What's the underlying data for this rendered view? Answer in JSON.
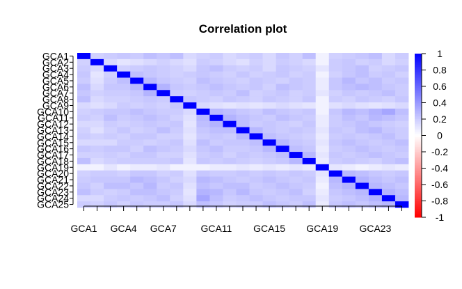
{
  "chart_data": {
    "type": "heatmap",
    "title": "Correlation plot",
    "xlabel": "",
    "ylabel": "",
    "variables": [
      "GCA1",
      "GCA2",
      "GCA3",
      "GCA4",
      "GCA5",
      "GCA6",
      "GCA7",
      "GCA8",
      "GCA9",
      "GCA10",
      "GCA11",
      "GCA12",
      "GCA13",
      "GCA14",
      "GCA15",
      "GCA16",
      "GCA17",
      "GCA18",
      "GCA19",
      "GCA20",
      "GCA21",
      "GCA22",
      "GCA23",
      "GCA24",
      "GCA25"
    ],
    "x_tick_labels": [
      "GCA1",
      "GCA4",
      "GCA7",
      "GCA11",
      "GCA15",
      "GCA19",
      "GCA23"
    ],
    "y_tick_labels": [
      "GCA1",
      "GCA2",
      "GCA3",
      "GCA4",
      "GCA5",
      "GCA6",
      "GCA7",
      "GCA8",
      "GCA9",
      "GCA10",
      "GCA11",
      "GCA12",
      "GCA13",
      "GCA14",
      "GCA15",
      "GCA16",
      "GCA17",
      "GCA18",
      "GCA19",
      "GCA20",
      "GCA21",
      "GCA22",
      "GCA23",
      "GCA24",
      "GCA25"
    ],
    "color_scale": {
      "low": "#ff0000",
      "mid": "#ffffff",
      "high": "#0000ff",
      "range": [
        -1,
        1
      ]
    },
    "legend_ticks": [
      "1",
      "0.8",
      "0.6",
      "0.4",
      "0.2",
      "0",
      "-0.2",
      "-0.4",
      "-0.6",
      "-0.8",
      "-1"
    ],
    "legend_position": "right",
    "grid": false,
    "matrix": [
      [
        1.0,
        0.18,
        0.2,
        0.22,
        0.2,
        0.25,
        0.22,
        0.25,
        0.15,
        0.18,
        0.2,
        0.15,
        0.18,
        0.2,
        0.15,
        0.22,
        0.18,
        0.25,
        0.05,
        0.18,
        0.2,
        0.22,
        0.25,
        0.15,
        0.2
      ],
      [
        0.18,
        1.0,
        0.15,
        0.1,
        0.12,
        0.15,
        0.18,
        0.15,
        0.12,
        0.2,
        0.18,
        0.15,
        0.12,
        0.18,
        0.15,
        0.2,
        0.18,
        0.15,
        0.05,
        0.2,
        0.22,
        0.18,
        0.2,
        0.15,
        0.18
      ],
      [
        0.2,
        0.15,
        1.0,
        0.18,
        0.2,
        0.22,
        0.2,
        0.18,
        0.15,
        0.22,
        0.25,
        0.2,
        0.18,
        0.2,
        0.15,
        0.22,
        0.2,
        0.18,
        0.1,
        0.2,
        0.22,
        0.25,
        0.18,
        0.2,
        0.22
      ],
      [
        0.22,
        0.1,
        0.18,
        1.0,
        0.25,
        0.22,
        0.2,
        0.18,
        0.2,
        0.22,
        0.2,
        0.18,
        0.22,
        0.18,
        0.2,
        0.22,
        0.18,
        0.2,
        0.05,
        0.18,
        0.22,
        0.25,
        0.2,
        0.22,
        0.18
      ],
      [
        0.2,
        0.12,
        0.2,
        0.25,
        1.0,
        0.28,
        0.22,
        0.2,
        0.18,
        0.25,
        0.22,
        0.2,
        0.18,
        0.22,
        0.2,
        0.18,
        0.22,
        0.2,
        0.08,
        0.22,
        0.28,
        0.22,
        0.25,
        0.2,
        0.22
      ],
      [
        0.25,
        0.15,
        0.22,
        0.22,
        0.28,
        1.0,
        0.3,
        0.22,
        0.2,
        0.22,
        0.25,
        0.22,
        0.2,
        0.22,
        0.18,
        0.25,
        0.22,
        0.2,
        0.08,
        0.22,
        0.25,
        0.28,
        0.25,
        0.22,
        0.2
      ],
      [
        0.22,
        0.18,
        0.2,
        0.2,
        0.22,
        0.3,
        1.0,
        0.2,
        0.18,
        0.2,
        0.22,
        0.2,
        0.25,
        0.18,
        0.2,
        0.22,
        0.18,
        0.2,
        0.1,
        0.18,
        0.22,
        0.2,
        0.22,
        0.25,
        0.2
      ],
      [
        0.25,
        0.15,
        0.18,
        0.18,
        0.2,
        0.22,
        0.2,
        1.0,
        0.22,
        0.2,
        0.18,
        0.22,
        0.2,
        0.18,
        0.22,
        0.2,
        0.18,
        0.22,
        0.05,
        0.2,
        0.18,
        0.22,
        0.2,
        0.18,
        0.22
      ],
      [
        0.15,
        0.12,
        0.15,
        0.2,
        0.18,
        0.2,
        0.18,
        0.22,
        1.0,
        0.15,
        0.12,
        0.1,
        0.12,
        0.1,
        0.12,
        0.15,
        0.12,
        0.1,
        0.05,
        0.12,
        0.15,
        0.12,
        0.1,
        0.12,
        0.15
      ],
      [
        0.18,
        0.2,
        0.22,
        0.22,
        0.25,
        0.22,
        0.2,
        0.2,
        0.15,
        1.0,
        0.28,
        0.25,
        0.22,
        0.2,
        0.25,
        0.22,
        0.2,
        0.22,
        0.05,
        0.22,
        0.28,
        0.25,
        0.3,
        0.35,
        0.25
      ],
      [
        0.2,
        0.18,
        0.25,
        0.2,
        0.22,
        0.25,
        0.22,
        0.18,
        0.12,
        0.28,
        1.0,
        0.3,
        0.25,
        0.22,
        0.2,
        0.25,
        0.22,
        0.2,
        0.08,
        0.2,
        0.25,
        0.22,
        0.28,
        0.25,
        0.22
      ],
      [
        0.15,
        0.15,
        0.2,
        0.18,
        0.2,
        0.22,
        0.2,
        0.22,
        0.1,
        0.25,
        0.3,
        1.0,
        0.25,
        0.2,
        0.22,
        0.2,
        0.18,
        0.22,
        0.08,
        0.2,
        0.22,
        0.25,
        0.22,
        0.2,
        0.18
      ],
      [
        0.18,
        0.12,
        0.18,
        0.22,
        0.18,
        0.2,
        0.25,
        0.2,
        0.12,
        0.22,
        0.25,
        0.25,
        1.0,
        0.28,
        0.22,
        0.2,
        0.22,
        0.2,
        0.1,
        0.22,
        0.2,
        0.25,
        0.28,
        0.22,
        0.2
      ],
      [
        0.2,
        0.18,
        0.2,
        0.18,
        0.22,
        0.22,
        0.18,
        0.18,
        0.1,
        0.2,
        0.22,
        0.2,
        0.28,
        1.0,
        0.25,
        0.22,
        0.2,
        0.18,
        0.08,
        0.2,
        0.22,
        0.2,
        0.22,
        0.25,
        0.2
      ],
      [
        0.15,
        0.15,
        0.15,
        0.2,
        0.2,
        0.18,
        0.2,
        0.22,
        0.12,
        0.25,
        0.2,
        0.22,
        0.22,
        0.25,
        1.0,
        0.28,
        0.22,
        0.2,
        0.1,
        0.22,
        0.25,
        0.22,
        0.2,
        0.22,
        0.25
      ],
      [
        0.22,
        0.2,
        0.22,
        0.22,
        0.18,
        0.25,
        0.22,
        0.2,
        0.15,
        0.22,
        0.25,
        0.2,
        0.2,
        0.22,
        0.28,
        1.0,
        0.25,
        0.22,
        0.08,
        0.2,
        0.22,
        0.25,
        0.22,
        0.2,
        0.22
      ],
      [
        0.18,
        0.18,
        0.2,
        0.18,
        0.22,
        0.22,
        0.18,
        0.18,
        0.12,
        0.2,
        0.22,
        0.18,
        0.22,
        0.2,
        0.22,
        0.25,
        1.0,
        0.28,
        0.1,
        0.22,
        0.2,
        0.22,
        0.25,
        0.22,
        0.2
      ],
      [
        0.25,
        0.15,
        0.18,
        0.2,
        0.2,
        0.2,
        0.2,
        0.22,
        0.1,
        0.22,
        0.2,
        0.22,
        0.2,
        0.18,
        0.2,
        0.22,
        0.28,
        1.0,
        0.08,
        0.2,
        0.22,
        0.2,
        0.18,
        0.22,
        0.25
      ],
      [
        0.05,
        0.05,
        0.1,
        0.05,
        0.08,
        0.08,
        0.1,
        0.05,
        0.05,
        0.05,
        0.08,
        0.08,
        0.1,
        0.08,
        0.1,
        0.08,
        0.1,
        0.08,
        1.0,
        0.1,
        0.08,
        0.05,
        0.08,
        0.1,
        0.08
      ],
      [
        0.18,
        0.2,
        0.2,
        0.18,
        0.22,
        0.22,
        0.18,
        0.2,
        0.12,
        0.22,
        0.2,
        0.2,
        0.22,
        0.2,
        0.22,
        0.2,
        0.22,
        0.2,
        0.1,
        1.0,
        0.28,
        0.25,
        0.22,
        0.2,
        0.22
      ],
      [
        0.2,
        0.22,
        0.22,
        0.22,
        0.28,
        0.25,
        0.22,
        0.18,
        0.15,
        0.28,
        0.25,
        0.22,
        0.2,
        0.22,
        0.25,
        0.22,
        0.2,
        0.22,
        0.08,
        0.28,
        1.0,
        0.3,
        0.25,
        0.22,
        0.25
      ],
      [
        0.22,
        0.18,
        0.25,
        0.25,
        0.22,
        0.28,
        0.2,
        0.22,
        0.12,
        0.25,
        0.22,
        0.25,
        0.25,
        0.2,
        0.22,
        0.25,
        0.22,
        0.2,
        0.05,
        0.25,
        0.3,
        1.0,
        0.28,
        0.25,
        0.22
      ],
      [
        0.25,
        0.2,
        0.18,
        0.2,
        0.25,
        0.25,
        0.22,
        0.2,
        0.1,
        0.3,
        0.28,
        0.22,
        0.28,
        0.22,
        0.2,
        0.22,
        0.25,
        0.18,
        0.08,
        0.22,
        0.25,
        0.28,
        1.0,
        0.3,
        0.25
      ],
      [
        0.15,
        0.15,
        0.2,
        0.22,
        0.2,
        0.22,
        0.25,
        0.18,
        0.12,
        0.35,
        0.25,
        0.2,
        0.22,
        0.25,
        0.22,
        0.2,
        0.22,
        0.22,
        0.1,
        0.2,
        0.22,
        0.25,
        0.3,
        1.0,
        0.28
      ],
      [
        0.2,
        0.18,
        0.22,
        0.18,
        0.22,
        0.2,
        0.2,
        0.22,
        0.15,
        0.25,
        0.22,
        0.18,
        0.2,
        0.2,
        0.25,
        0.22,
        0.2,
        0.25,
        0.08,
        0.22,
        0.25,
        0.22,
        0.25,
        0.28,
        1.0
      ]
    ]
  }
}
